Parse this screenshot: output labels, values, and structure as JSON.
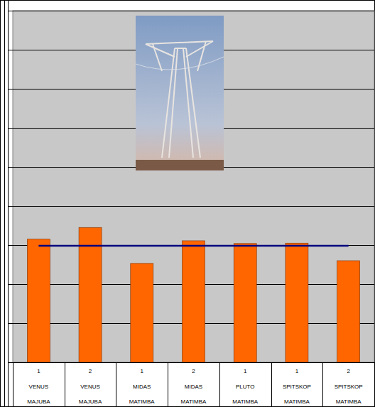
{
  "chart_data": {
    "type": "bar",
    "categories": [
      [
        "1",
        "VENUS",
        "MAJUBA"
      ],
      [
        "2",
        "VENUS",
        "MAJUBA"
      ],
      [
        "1",
        "MIDAS",
        "MATIMBA"
      ],
      [
        "2",
        "MIDAS",
        "MATIMBA"
      ],
      [
        "1",
        "PLUTO",
        "MATIMBA"
      ],
      [
        "1",
        "SPITSKOP",
        "MATIMBA"
      ],
      [
        "2",
        "SPITSKOP",
        "MATIMBA"
      ]
    ],
    "series": [
      {
        "type": "bar",
        "color": "#ff6600",
        "values": [
          3.15,
          3.45,
          2.53,
          3.11,
          3.04,
          3.05,
          2.6
        ]
      },
      {
        "type": "line",
        "color": "#000080",
        "values": [
          2.98,
          2.98,
          2.98,
          2.98,
          2.98,
          2.98,
          2.98
        ]
      }
    ],
    "ylim": [
      0,
      9
    ],
    "yticks": [
      0,
      1,
      2,
      3,
      4,
      5,
      6,
      7,
      8,
      9
    ],
    "grid": true,
    "tick_labels": false
  }
}
